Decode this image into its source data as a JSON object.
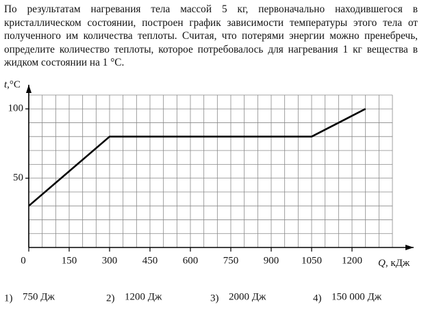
{
  "question": "По результатам нагревания тела массой 5 кг, первоначально находившегося в кристаллическом состоянии, построен график зависимости температуры этого тела от полученного им количества теплоты. Считая, что потерями энергии можно пренебречь, определите количество теплоты, которое потребовалось для нагревания 1 кг вещества в жидком состоянии на 1 °C.",
  "chart_data": {
    "type": "line",
    "x": [
      0,
      300,
      1050,
      1250
    ],
    "values": [
      30,
      80,
      80,
      100
    ],
    "xlim": [
      0,
      1350
    ],
    "ylim": [
      0,
      110
    ],
    "xticks": [
      0,
      150,
      300,
      450,
      600,
      750,
      900,
      1050,
      1200
    ],
    "yticks": [
      50,
      100
    ],
    "ylabel": {
      "symbol": "t",
      "unit": ",°C"
    },
    "xlabel": {
      "symbol": "Q",
      "unit": ", кДж"
    },
    "color": "#000000",
    "grid": true
  },
  "answers": [
    {
      "number": "1)",
      "text": "750 Дж"
    },
    {
      "number": "2)",
      "text": "1200 Дж"
    },
    {
      "number": "3)",
      "text": "2000 Дж"
    },
    {
      "number": "4)",
      "text": "150 000 Дж"
    }
  ]
}
